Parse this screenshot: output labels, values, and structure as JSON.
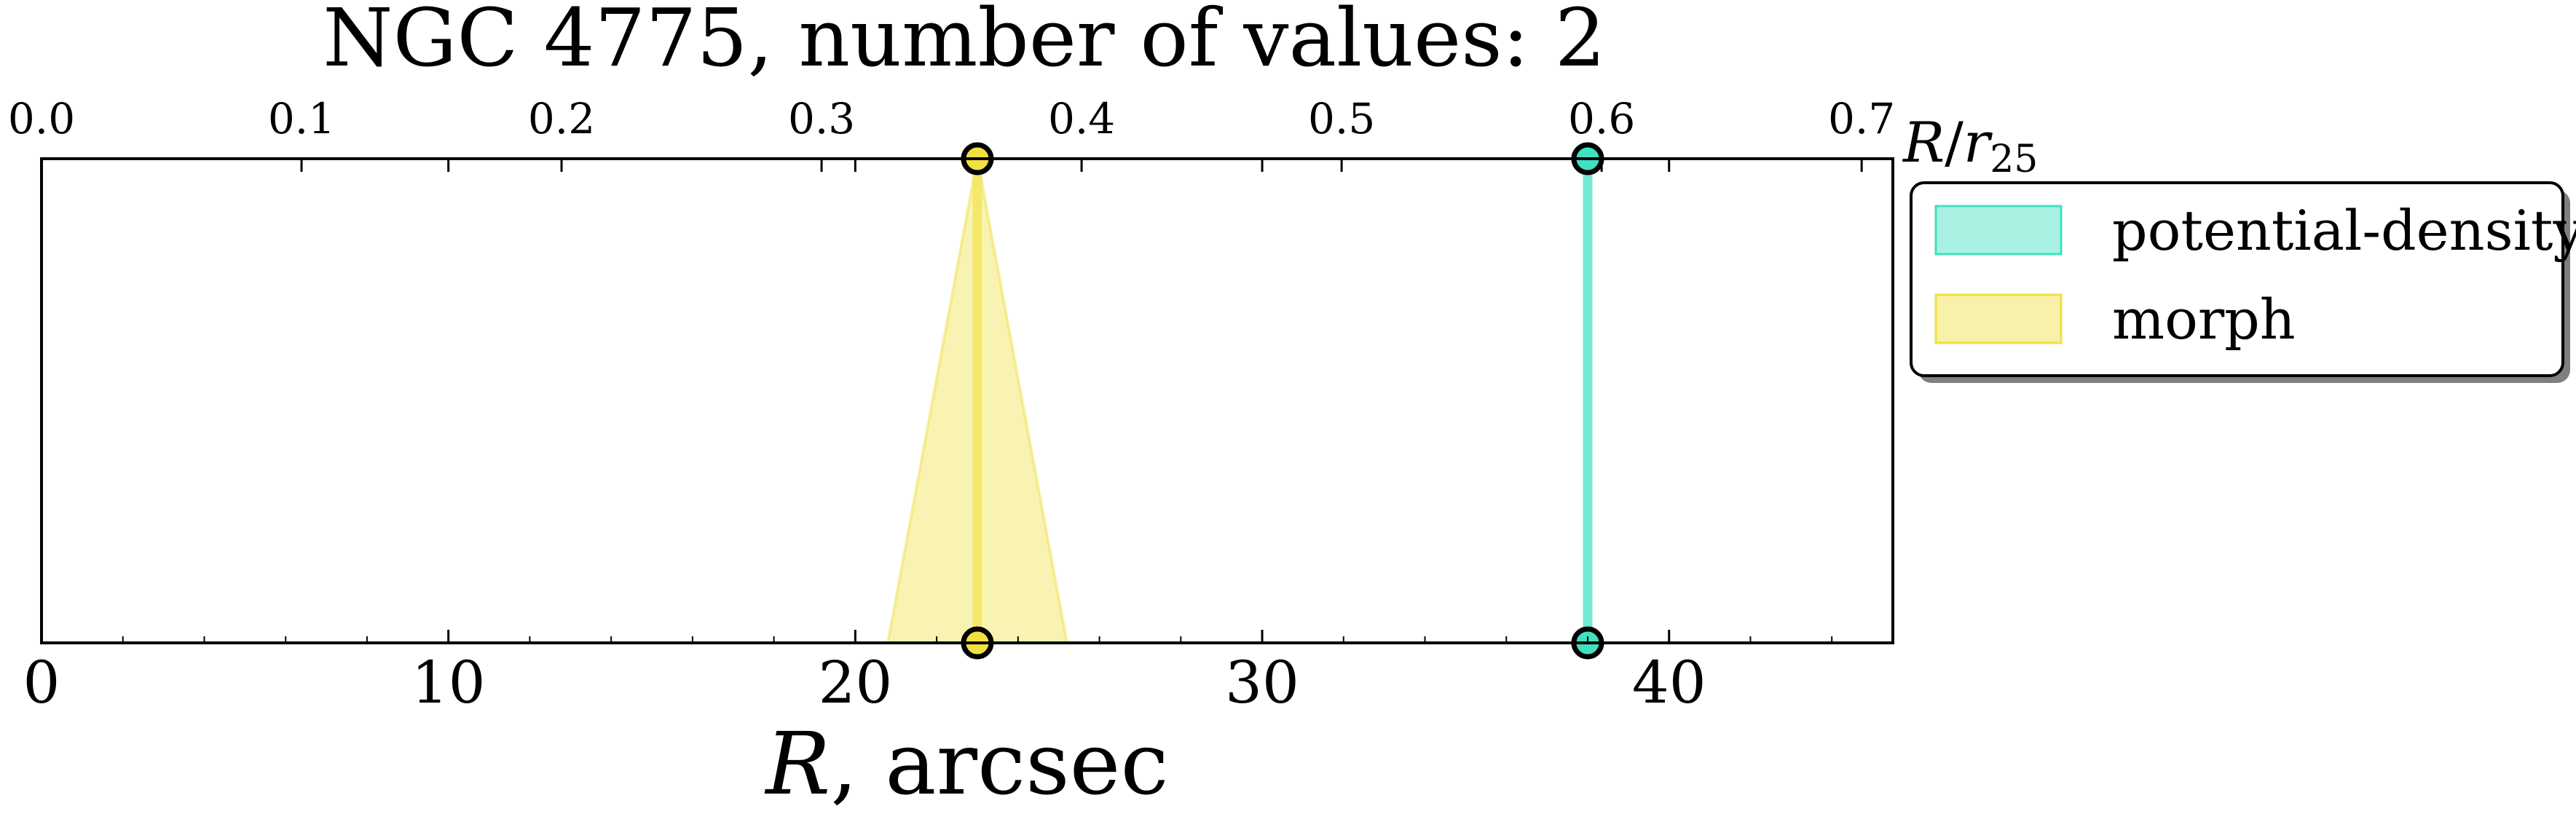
{
  "chart_data": {
    "type": "line",
    "title": "NGC 4775, number of values: 2",
    "xlabel_italic": "R",
    "xlabel_rest": ", arcsec",
    "x2label_R": "R",
    "x2label_slash": "/",
    "x2label_r": "r",
    "x2label_sub": "25",
    "xlim": [
      0,
      45.5
    ],
    "x2lim": [
      0.0,
      0.712
    ],
    "x_ticks": [
      0,
      10,
      20,
      30,
      40
    ],
    "x_tick_labels": [
      "0",
      "10",
      "20",
      "30",
      "40"
    ],
    "x2_ticks": [
      0.0,
      0.1,
      0.2,
      0.3,
      0.4,
      0.5,
      0.6,
      0.7
    ],
    "x2_tick_labels": [
      "0.0",
      "0.1",
      "0.2",
      "0.3",
      "0.4",
      "0.5",
      "0.6",
      "0.7"
    ],
    "grid": false,
    "legend_position": "outside-right",
    "series": [
      {
        "name": "potential-density",
        "color": "#40E0C0",
        "x": 38.0,
        "x_min": 38.0,
        "x_max": 38.0
      },
      {
        "name": "morph",
        "color": "#F0E040",
        "x": 23.0,
        "x_min": 20.8,
        "x_max": 25.2
      }
    ]
  }
}
